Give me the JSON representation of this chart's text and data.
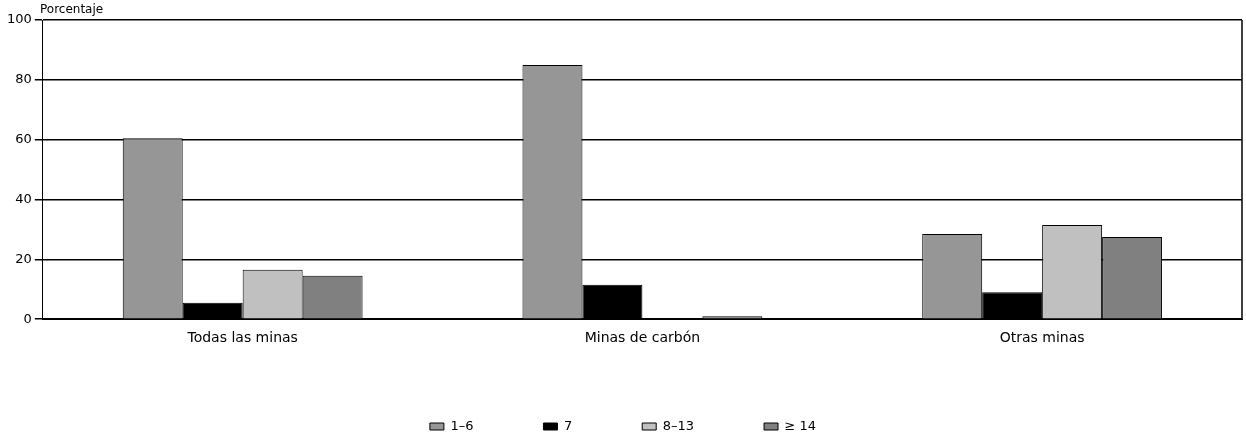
{
  "chart_data": {
    "type": "bar",
    "ylabel": "Porcentaje",
    "categories": [
      "Todas las minas",
      "Minas de carbón",
      "Otras minas"
    ],
    "series": [
      {
        "name": "1–6",
        "color": "#969696",
        "values": [
          60.5,
          85,
          28.5
        ]
      },
      {
        "name": "7",
        "color": "#000000",
        "values": [
          5.5,
          11.5,
          9
        ]
      },
      {
        "name": "8–13",
        "color": "#c0c0c0",
        "values": [
          16.5,
          0,
          31.5
        ]
      },
      {
        "name": "≥ 14",
        "color": "#808080",
        "values": [
          14.5,
          1,
          27.5
        ]
      }
    ],
    "ylim": [
      0,
      100
    ],
    "yticks": [
      0,
      20,
      40,
      60,
      80,
      100
    ],
    "grid": "y",
    "legend": "bottom"
  }
}
